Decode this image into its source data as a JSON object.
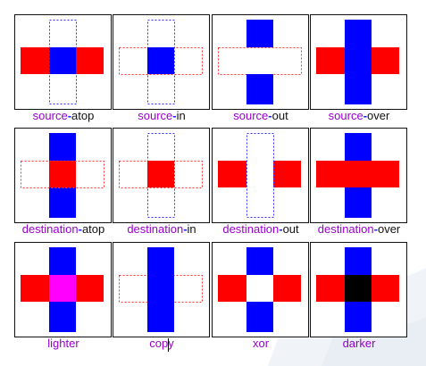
{
  "colors": {
    "source": "#0000ff",
    "destination": "#ff0000",
    "lighter_overlap": "#ff00ff",
    "darker_overlap": "#000000",
    "outline_source": "#3333ff",
    "outline_destination": "#ff3333",
    "caption_prefix": "#9900cc",
    "caption_separator": "#2222ff",
    "caption_suffix": "#111111"
  },
  "labels": {
    "source_atop": {
      "prefix": "source",
      "sep": "-",
      "suffix": "atop"
    },
    "source_in": {
      "prefix": "source",
      "sep": "-",
      "suffix": "in"
    },
    "source_out": {
      "prefix": "source",
      "sep": "-",
      "suffix": "out"
    },
    "source_over": {
      "prefix": "source",
      "sep": "-",
      "suffix": "over"
    },
    "destination_atop": {
      "prefix": "destination",
      "sep": "-",
      "suffix": "atop"
    },
    "destination_in": {
      "prefix": "destination",
      "sep": "-",
      "suffix": "in"
    },
    "destination_out": {
      "prefix": "destination",
      "sep": "-",
      "suffix": "out"
    },
    "destination_over": {
      "prefix": "destination",
      "sep": "-",
      "suffix": "over"
    },
    "lighter": {
      "prefix": "lighter"
    },
    "copy": {
      "prefix": "copy"
    },
    "xor": {
      "prefix": "xor"
    },
    "darker": {
      "prefix": "darker"
    }
  }
}
